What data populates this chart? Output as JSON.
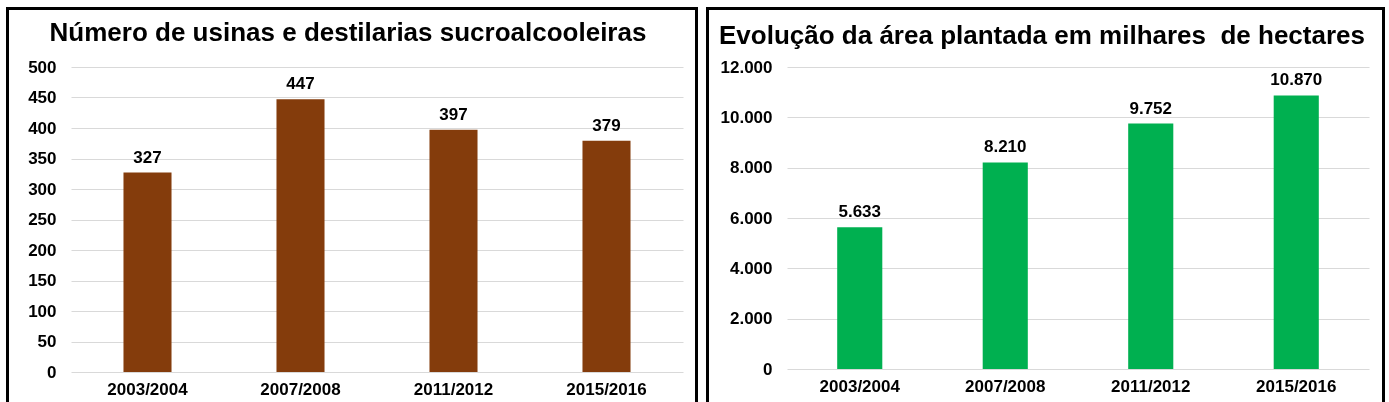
{
  "chart_data": [
    {
      "type": "bar",
      "title": "Número de usinas e destilarias sucroalcooleiras",
      "categories": [
        "2003/2004",
        "2007/2008",
        "2011/2012",
        "2015/2016"
      ],
      "values": [
        327,
        447,
        397,
        379
      ],
      "color": "#843c0c",
      "ylim": [
        0,
        500
      ],
      "yticks": [
        0,
        50,
        100,
        150,
        200,
        250,
        300,
        350,
        400,
        450,
        500
      ],
      "grid": "y",
      "data_labels": true
    },
    {
      "type": "bar",
      "title": "Evolução da área plantada em milhares  de hectares",
      "categories": [
        "2003/2004",
        "2007/2008",
        "2011/2012",
        "2015/2016"
      ],
      "values": [
        5633,
        8210,
        9752,
        10870
      ],
      "value_labels": [
        "5.633",
        "8.210",
        "9.752",
        "10.870"
      ],
      "color": "#00b050",
      "ylim": [
        0,
        12000
      ],
      "yticks": [
        0,
        {
          "value": 2000,
          "label": "2.000"
        },
        {
          "value": 4000,
          "label": "4.000"
        },
        {
          "value": 6000,
          "label": "6.000"
        },
        {
          "value": 8000,
          "label": "8.000"
        },
        {
          "value": 10000,
          "label": "10.000"
        },
        {
          "value": 12000,
          "label": "12.000"
        }
      ],
      "grid": "y"
    }
  ]
}
